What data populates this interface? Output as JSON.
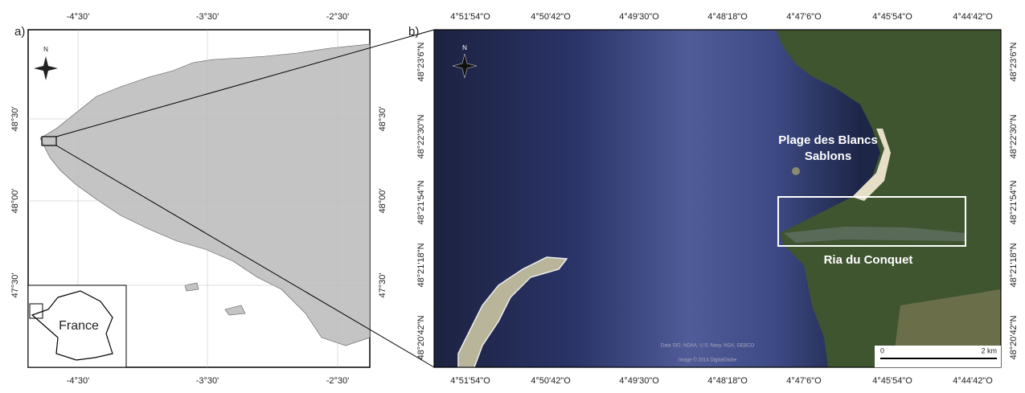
{
  "panel_a": {
    "label": "a)",
    "lon_ticks": [
      "-4°30'",
      "-3°30'",
      "-2°30'"
    ],
    "lat_ticks": [
      "48°30'",
      "48°00'",
      "47°30'"
    ],
    "north": "N",
    "inset_label": "France"
  },
  "panel_b": {
    "label": "b)",
    "lon_ticks": [
      "4°51'54\"O",
      "4°50'42\"O",
      "4°49'30\"O",
      "4°48'18\"O",
      "4°47'6\"O",
      "4°45'54\"O",
      "4°44'42\"O"
    ],
    "lat_ticks": [
      "48°23'6\"N",
      "48°22'30\"N",
      "48°21'54\"N",
      "48°21'18\"N",
      "48°20'42\"N"
    ],
    "north": "N",
    "places": [
      "Plage des Blancs",
      "Sablons",
      "Ria du Conquet"
    ],
    "scale": [
      "0",
      "2 km"
    ],
    "credits": [
      "Data SIO, NOAA, U.S. Navy, NGA, GEBCO",
      "Image © 2014 DigitalGlobe"
    ]
  }
}
